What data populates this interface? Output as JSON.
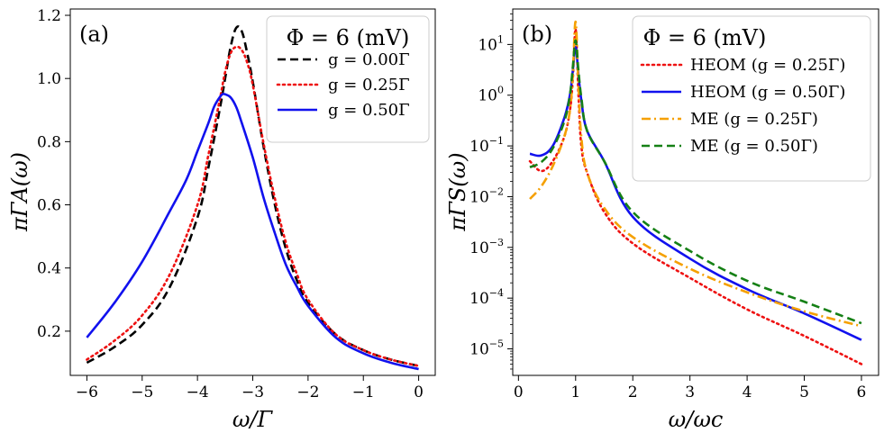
{
  "chart_data": [
    {
      "type": "line",
      "panel_label": "(a)",
      "xlabel": "ω/Γ",
      "ylabel": "πΓA(ω)",
      "xlim": [
        -6.3,
        0.3
      ],
      "ylim": [
        0.06,
        1.22
      ],
      "x_ticks": [
        -6,
        -5,
        -4,
        -3,
        -2,
        -1,
        0
      ],
      "x_tick_labels": [
        "−6",
        "−5",
        "−4",
        "−3",
        "−2",
        "−1",
        "0"
      ],
      "y_ticks": [
        0.2,
        0.4,
        0.6,
        0.8,
        1.0,
        1.2
      ],
      "y_tick_labels": [
        "0.2",
        "0.4",
        "0.6",
        "0.8",
        "1.0",
        "1.2"
      ],
      "legend_title": "Φ = 6 (mV)",
      "legend_position": "top-right",
      "series": [
        {
          "name": "g = 0.00Γ",
          "color": "#000000",
          "dash": "dashed",
          "x": [
            -6,
            -5.5,
            -5,
            -4.5,
            -4,
            -3.8,
            -3.6,
            -3.5,
            -3.4,
            -3.3,
            -3.2,
            -3.1,
            -3.0,
            -2.8,
            -2.6,
            -2.4,
            -2.2,
            -2.0,
            -1.5,
            -1.0,
            -0.5,
            0
          ],
          "y": [
            0.1,
            0.15,
            0.22,
            0.34,
            0.56,
            0.72,
            0.9,
            1.0,
            1.1,
            1.16,
            1.15,
            1.08,
            0.99,
            0.78,
            0.6,
            0.46,
            0.36,
            0.29,
            0.19,
            0.14,
            0.11,
            0.09
          ]
        },
        {
          "name": "g = 0.25Γ",
          "color": "#ee1111",
          "dash": "dotted",
          "x": [
            -6,
            -5.5,
            -5,
            -4.5,
            -4,
            -3.8,
            -3.6,
            -3.5,
            -3.4,
            -3.3,
            -3.2,
            -3.1,
            -3.0,
            -2.8,
            -2.6,
            -2.4,
            -2.2,
            -2.0,
            -1.5,
            -1.0,
            -0.5,
            0
          ],
          "y": [
            0.11,
            0.17,
            0.25,
            0.38,
            0.6,
            0.76,
            0.93,
            1.02,
            1.08,
            1.1,
            1.09,
            1.05,
            0.98,
            0.79,
            0.62,
            0.48,
            0.38,
            0.3,
            0.19,
            0.14,
            0.11,
            0.09
          ]
        },
        {
          "name": "g = 0.50Γ",
          "color": "#1111ee",
          "dash": "solid",
          "x": [
            -6,
            -5.5,
            -5,
            -4.5,
            -4.2,
            -4.0,
            -3.8,
            -3.7,
            -3.6,
            -3.55,
            -3.5,
            -3.4,
            -3.3,
            -3.2,
            -3.0,
            -2.8,
            -2.6,
            -2.4,
            -2.2,
            -2.0,
            -1.5,
            -1.0,
            -0.5,
            0
          ],
          "y": [
            0.18,
            0.29,
            0.42,
            0.58,
            0.68,
            0.77,
            0.86,
            0.91,
            0.94,
            0.95,
            0.95,
            0.94,
            0.91,
            0.86,
            0.75,
            0.62,
            0.51,
            0.41,
            0.34,
            0.28,
            0.18,
            0.13,
            0.1,
            0.08
          ]
        }
      ]
    },
    {
      "type": "line",
      "panel_label": "(b)",
      "xlabel": "ω/ωc",
      "ylabel": "πΓS(ω)",
      "yscale": "log",
      "xlim": [
        -0.1,
        6.3
      ],
      "ylim": [
        3e-06,
        50
      ],
      "x_ticks": [
        0,
        1,
        2,
        3,
        4,
        5,
        6
      ],
      "x_tick_labels": [
        "0",
        "1",
        "2",
        "3",
        "4",
        "5",
        "6"
      ],
      "y_ticks": [
        1e-05,
        0.0001,
        0.001,
        0.01,
        0.1,
        1,
        10
      ],
      "y_tick_bases": [
        "10",
        "10",
        "10",
        "10",
        "10",
        "10",
        "10"
      ],
      "y_tick_exponents": [
        "−5",
        "−4",
        "−3",
        "−2",
        "−1",
        "0",
        "1"
      ],
      "legend_title": "Φ = 6 (mV)",
      "legend_position": "top-right",
      "series": [
        {
          "name": "HEOM (g = 0.25Γ)",
          "color": "#ee1111",
          "dash": "dotted",
          "x": [
            0.2,
            0.4,
            0.6,
            0.8,
            0.9,
            0.95,
            1.0,
            1.05,
            1.1,
            1.2,
            1.5,
            2.0,
            3.0,
            4.0,
            5.0,
            6.0
          ],
          "y": [
            0.05,
            0.032,
            0.05,
            0.15,
            0.5,
            2.0,
            20.0,
            1.0,
            0.1,
            0.03,
            0.005,
            0.0012,
            0.00025,
            6e-05,
            1.8e-05,
            5e-06
          ]
        },
        {
          "name": "HEOM (g = 0.50Γ)",
          "color": "#1111ee",
          "dash": "solid",
          "x": [
            0.2,
            0.4,
            0.6,
            0.8,
            0.9,
            0.95,
            1.0,
            1.05,
            1.1,
            1.2,
            1.5,
            2.0,
            3.0,
            4.0,
            5.0,
            6.0
          ],
          "y": [
            0.07,
            0.065,
            0.1,
            0.35,
            1.0,
            3.0,
            9.0,
            2.5,
            0.8,
            0.2,
            0.05,
            0.004,
            0.0006,
            0.00015,
            5e-05,
            1.5e-05
          ]
        },
        {
          "name": "ME (g = 0.25Γ)",
          "color": "#f5a000",
          "dash": "dashdot",
          "x": [
            0.2,
            0.4,
            0.6,
            0.8,
            0.9,
            0.95,
            1.0,
            1.05,
            1.1,
            1.2,
            1.5,
            2.0,
            3.0,
            4.0,
            5.0,
            6.0
          ],
          "y": [
            0.009,
            0.016,
            0.04,
            0.15,
            0.5,
            2.5,
            28.0,
            1.5,
            0.15,
            0.03,
            0.006,
            0.0016,
            0.00038,
            0.00013,
            5.5e-05,
            2.8e-05
          ]
        },
        {
          "name": "ME (g = 0.50Γ)",
          "color": "#158015",
          "dash": "dashed",
          "x": [
            0.2,
            0.4,
            0.6,
            0.8,
            0.9,
            0.95,
            1.0,
            1.05,
            1.1,
            1.2,
            1.5,
            2.0,
            3.0,
            4.0,
            5.0,
            6.0
          ],
          "y": [
            0.038,
            0.048,
            0.09,
            0.3,
            1.0,
            3.5,
            12.0,
            3.0,
            0.9,
            0.2,
            0.05,
            0.005,
            0.00085,
            0.00022,
            8.5e-05,
            3.2e-05
          ]
        }
      ]
    }
  ]
}
